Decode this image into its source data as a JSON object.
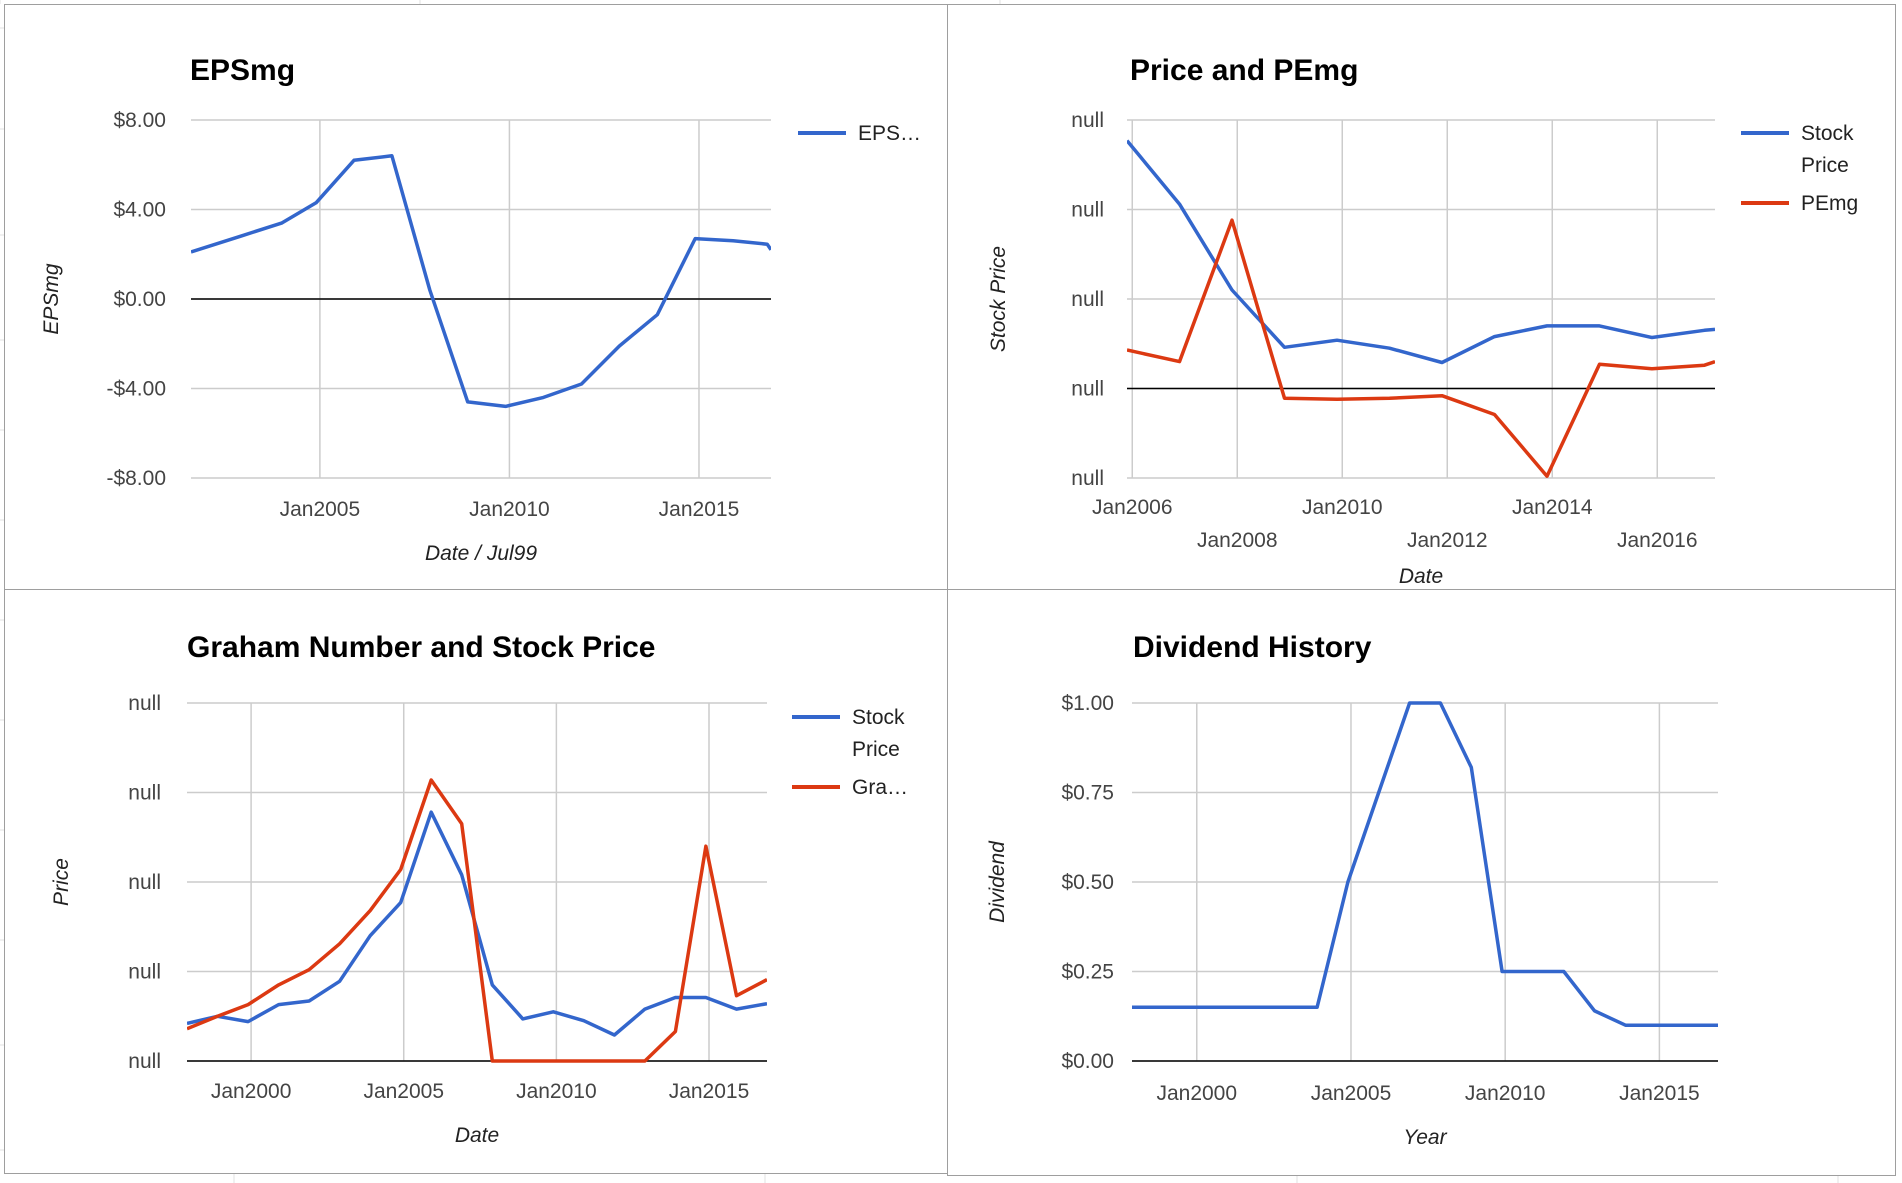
{
  "colors": {
    "blue": "#3366cc",
    "red": "#dc3912",
    "grid": "#cccccc",
    "zero": "#000000",
    "text": "#444444",
    "title": "#000000",
    "sheet_line": "#e2e2e2"
  },
  "chart_data": [
    {
      "id": "eps",
      "type": "line",
      "title": "EPSmg",
      "xlabel": "Date / Jul99",
      "ylabel": "EPSmg",
      "xlim": [
        2001.6,
        2016.9
      ],
      "ylim": [
        -8,
        8
      ],
      "xticks": [
        {
          "v": 2005,
          "label": "Jan2005"
        },
        {
          "v": 2010,
          "label": "Jan2010"
        },
        {
          "v": 2015,
          "label": "Jan2015"
        }
      ],
      "yticks": [
        {
          "v": 8,
          "label": "$8.00"
        },
        {
          "v": 4,
          "label": "$4.00"
        },
        {
          "v": 0,
          "label": "$0.00"
        },
        {
          "v": -4,
          "label": "-$4.00"
        },
        {
          "v": -8,
          "label": "-$8.00"
        }
      ],
      "zero_line": 0,
      "legend_position": "right",
      "legend": [
        {
          "label": "EPS…",
          "color": "#3366cc"
        }
      ],
      "series": [
        {
          "color": "#3366cc",
          "x": [
            2001.6,
            2002.9,
            2004,
            2004.9,
            2005.9,
            2006.9,
            2007.9,
            2008.9,
            2009.9,
            2010.9,
            2011.9,
            2012.9,
            2013.9,
            2014.9,
            2015.9,
            2016.8,
            2016.9
          ],
          "y": [
            2.1,
            2.8,
            3.4,
            4.3,
            6.2,
            6.4,
            0.4,
            -4.6,
            -4.8,
            -4.4,
            -3.8,
            -2.1,
            -0.7,
            2.7,
            2.6,
            2.45,
            2.2
          ]
        }
      ]
    },
    {
      "id": "pe",
      "type": "line",
      "title": "Price and PEmg",
      "xlabel": "Date",
      "ylabel": "Stock Price",
      "xlim": [
        2005.9,
        2017.1
      ],
      "ylim": [
        0,
        4
      ],
      "xticks": [
        {
          "v": 2006,
          "label": "Jan2006",
          "row": 0
        },
        {
          "v": 2008,
          "label": "Jan2008",
          "row": 1
        },
        {
          "v": 2010,
          "label": "Jan2010",
          "row": 0
        },
        {
          "v": 2012,
          "label": "Jan2012",
          "row": 1
        },
        {
          "v": 2014,
          "label": "Jan2014",
          "row": 0
        },
        {
          "v": 2016,
          "label": "Jan2016",
          "row": 1
        }
      ],
      "yticks": [
        {
          "v": 4,
          "label": "null"
        },
        {
          "v": 3,
          "label": "null"
        },
        {
          "v": 2,
          "label": "null"
        },
        {
          "v": 1,
          "label": "null"
        },
        {
          "v": 0,
          "label": "null"
        }
      ],
      "zero_line": 1,
      "legend_position": "right",
      "legend": [
        {
          "label": "Stock\nPrice",
          "color": "#3366cc"
        },
        {
          "label": "PEmg",
          "color": "#dc3912"
        }
      ],
      "series": [
        {
          "color": "#3366cc",
          "x": [
            2005.9,
            2006.9,
            2007.9,
            2008.9,
            2009.9,
            2010.9,
            2011.9,
            2012.9,
            2013.9,
            2014.9,
            2015.9,
            2016.9,
            2017.1
          ],
          "y": [
            3.77,
            3.06,
            2.1,
            1.46,
            1.54,
            1.45,
            1.29,
            1.58,
            1.7,
            1.7,
            1.57,
            1.65,
            1.66
          ]
        },
        {
          "color": "#dc3912",
          "x": [
            2005.9,
            2006.9,
            2007.9,
            2008.9,
            2009.9,
            2010.9,
            2011.9,
            2012.9,
            2013.9,
            2014.9,
            2015.9,
            2016.9,
            2017.1
          ],
          "y": [
            1.43,
            1.3,
            2.88,
            0.89,
            0.88,
            0.89,
            0.92,
            0.71,
            0.02,
            1.27,
            1.22,
            1.26,
            1.3
          ]
        }
      ]
    },
    {
      "id": "graham",
      "type": "line",
      "title": "Graham Number and Stock Price",
      "xlabel": "Date",
      "ylabel": "Price",
      "xlim": [
        1997.9,
        2016.9
      ],
      "ylim": [
        0,
        4
      ],
      "xticks": [
        {
          "v": 2000,
          "label": "Jan2000"
        },
        {
          "v": 2005,
          "label": "Jan2005"
        },
        {
          "v": 2010,
          "label": "Jan2010"
        },
        {
          "v": 2015,
          "label": "Jan2015"
        }
      ],
      "yticks": [
        {
          "v": 4,
          "label": "null"
        },
        {
          "v": 3,
          "label": "null"
        },
        {
          "v": 2,
          "label": "null"
        },
        {
          "v": 1,
          "label": "null"
        },
        {
          "v": 0,
          "label": "null"
        }
      ],
      "zero_line": 0,
      "legend_position": "right",
      "legend": [
        {
          "label": "Stock\nPrice",
          "color": "#3366cc"
        },
        {
          "label": "Gra…",
          "color": "#dc3912"
        }
      ],
      "series": [
        {
          "color": "#3366cc",
          "x": [
            1997.9,
            1998.9,
            1999.9,
            2000.9,
            2001.9,
            2002.9,
            2003.9,
            2004.9,
            2005.9,
            2006.9,
            2007.9,
            2008.9,
            2009.9,
            2010.9,
            2011.9,
            2012.9,
            2013.9,
            2014.9,
            2015.9,
            2016.9
          ],
          "y": [
            0.42,
            0.5,
            0.44,
            0.63,
            0.67,
            0.89,
            1.4,
            1.77,
            2.78,
            2.08,
            0.85,
            0.47,
            0.55,
            0.45,
            0.29,
            0.58,
            0.71,
            0.71,
            0.58,
            0.64
          ]
        },
        {
          "color": "#dc3912",
          "x": [
            1997.9,
            1998.9,
            1999.9,
            2000.9,
            2001.9,
            2002.9,
            2003.9,
            2004.9,
            2005.9,
            2006.9,
            2007.9,
            2008.9,
            2009.9,
            2010.9,
            2011.9,
            2012.9,
            2013.9,
            2014.9,
            2015.9,
            2016.9
          ],
          "y": [
            0.36,
            0.5,
            0.63,
            0.85,
            1.02,
            1.31,
            1.68,
            2.14,
            3.14,
            2.65,
            0.0,
            0.0,
            0.0,
            0.0,
            0.0,
            0.0,
            0.33,
            2.4,
            0.73,
            0.91
          ]
        }
      ]
    },
    {
      "id": "dividend",
      "type": "line",
      "title": "Dividend History",
      "xlabel": "Year",
      "ylabel": "Dividend",
      "xlim": [
        1997.9,
        2016.9
      ],
      "ylim": [
        0,
        1
      ],
      "xticks": [
        {
          "v": 2000,
          "label": "Jan2000"
        },
        {
          "v": 2005,
          "label": "Jan2005"
        },
        {
          "v": 2010,
          "label": "Jan2010"
        },
        {
          "v": 2015,
          "label": "Jan2015"
        }
      ],
      "yticks": [
        {
          "v": 1,
          "label": "$1.00"
        },
        {
          "v": 0.75,
          "label": "$0.75"
        },
        {
          "v": 0.5,
          "label": "$0.50"
        },
        {
          "v": 0.25,
          "label": "$0.25"
        },
        {
          "v": 0,
          "label": "$0.00"
        }
      ],
      "zero_line": 0,
      "legend_position": "none",
      "legend": [],
      "series": [
        {
          "color": "#3366cc",
          "x": [
            1997.9,
            1998.9,
            1999.9,
            2000.9,
            2001.9,
            2002.9,
            2003.9,
            2004.9,
            2005.9,
            2006.9,
            2007.9,
            2008.9,
            2009.9,
            2010.9,
            2011.9,
            2012.9,
            2013.9,
            2014.9,
            2015.9,
            2016.9
          ],
          "y": [
            0.15,
            0.15,
            0.15,
            0.15,
            0.15,
            0.15,
            0.15,
            0.5,
            0.75,
            1.0,
            1.0,
            0.82,
            0.25,
            0.25,
            0.25,
            0.14,
            0.1,
            0.1,
            0.1,
            0.1
          ]
        }
      ]
    }
  ]
}
